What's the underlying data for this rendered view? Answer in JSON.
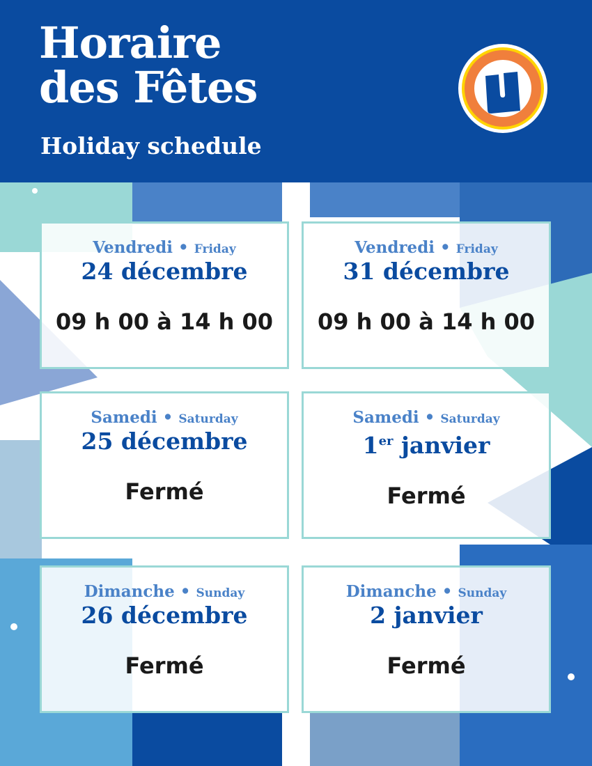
{
  "header": {
    "title_line1": "Horaire",
    "title_line2": "des Fêtes",
    "subtitle": "Holiday schedule",
    "logo_letter": "U"
  },
  "colors": {
    "brand_blue": "#0a4ba0",
    "day_blue": "#4a82c8",
    "card_border": "#9ad8d6",
    "logo_orange": "#f07f3c",
    "logo_yellow": "#ffd400"
  },
  "schedule": [
    {
      "day_fr": "Vendredi",
      "day_en": "Friday",
      "date": "24 décembre",
      "date_sup": "",
      "hours": "09 h 00 à 14 h 00"
    },
    {
      "day_fr": "Vendredi",
      "day_en": "Friday",
      "date": "31 décembre",
      "date_sup": "",
      "hours": "09 h 00 à 14 h 00"
    },
    {
      "day_fr": "Samedi",
      "day_en": "Saturday",
      "date": "25 décembre",
      "date_sup": "",
      "hours": "Fermé"
    },
    {
      "day_fr": "Samedi",
      "day_en": "Saturday",
      "date": "1",
      "date_sup": "er",
      "date_rest": " janvier",
      "hours": "Fermé"
    },
    {
      "day_fr": "Dimanche",
      "day_en": "Sunday",
      "date": "26 décembre",
      "date_sup": "",
      "hours": "Fermé"
    },
    {
      "day_fr": "Dimanche",
      "day_en": "Sunday",
      "date": "2 janvier",
      "date_sup": "",
      "hours": "Fermé"
    }
  ],
  "separator": "•"
}
